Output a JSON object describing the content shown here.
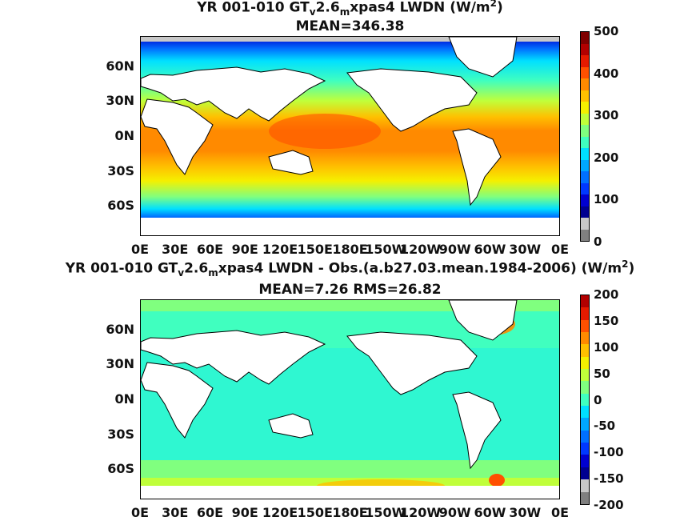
{
  "panels": [
    {
      "title_parts": {
        "pre": "YR 001-010 GT",
        "sub1": "v",
        "mid": "2.6",
        "sub2": "m",
        "post": "xpas4 LWDN (W/m",
        "sup": "2",
        "end": ")"
      },
      "subtitle": "MEAN=346.38",
      "colorbar": {
        "ticks": [
          "500",
          "400",
          "300",
          "200",
          "100",
          "0"
        ],
        "colors": [
          "#7f0000",
          "#b20000",
          "#e51a00",
          "#ff5000",
          "#ff8a00",
          "#ffc000",
          "#f5f000",
          "#c0ff3a",
          "#80ff7f",
          "#40ffbf",
          "#00e0ff",
          "#00a8ff",
          "#0070ff",
          "#0038ff",
          "#0000d0",
          "#000090",
          "#c8c8c8",
          "#808080"
        ]
      }
    },
    {
      "title_parts": {
        "pre": "YR 001-010 GT",
        "sub1": "v",
        "mid": "2.6",
        "sub2": "m",
        "post": "xpas4 LWDN - Obs.(a.b27.03.mean.1984-2006) (W/m",
        "sup": "2",
        "end": ")"
      },
      "subtitle": "MEAN=7.26 RMS=26.82",
      "colorbar": {
        "ticks": [
          "200",
          "150",
          "100",
          "50",
          "0",
          "-50",
          "-100",
          "-150",
          "-200"
        ],
        "colors": [
          "#b20000",
          "#e51a00",
          "#ff5000",
          "#ff8a00",
          "#ffc000",
          "#f5f000",
          "#c0ff3a",
          "#80ff7f",
          "#40ffbf",
          "#00e0ff",
          "#00a8ff",
          "#0070ff",
          "#0038ff",
          "#0000d0",
          "#000090",
          "#c8c8c8",
          "#808080"
        ]
      }
    }
  ],
  "lat_ticks": [
    "60N",
    "30N",
    "0N",
    "30S",
    "60S"
  ],
  "lon_ticks": [
    "0E",
    "30E",
    "60E",
    "90E",
    "120E",
    "150E",
    "180E",
    "150W",
    "120W",
    "90W",
    "60W",
    "30W",
    "0E"
  ]
}
